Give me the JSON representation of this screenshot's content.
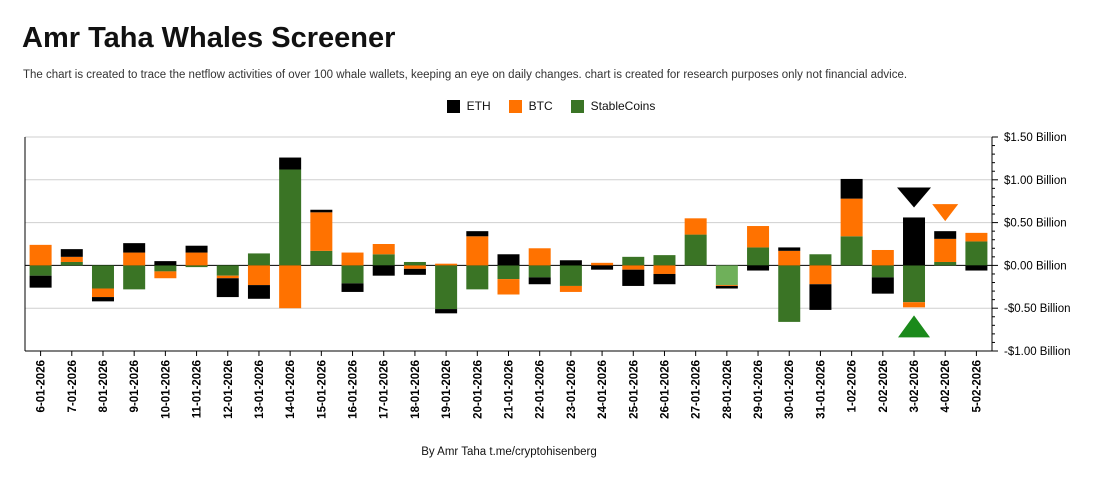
{
  "title": "Amr Taha Whales Screener",
  "subtitle": "The chart is created to trace the netflow activities of over 100 whale wallets, keeping an eye on daily changes.  chart is created for research purposes only not financial advice.",
  "credit": "By Amr Taha  t.me/cryptohisenberg",
  "legend": [
    {
      "name": "ETH",
      "color": "#000000"
    },
    {
      "name": "BTC",
      "color": "#ff7200"
    },
    {
      "name": "StableCoins",
      "color": "#3a7425"
    }
  ],
  "chart_data": {
    "type": "bar",
    "stacked": true,
    "title": "Amr Taha Whales Screener",
    "ylim": [
      -1.0,
      1.5
    ],
    "y_ticks": [
      -1.0,
      -0.5,
      0.0,
      0.5,
      1.0,
      1.5
    ],
    "y_tick_labels": [
      "-$1.00 Billion",
      "-$0.50 Billion",
      "$0.00 Billion",
      "$0.50 Billion",
      "$1.00 Billion",
      "$1.50 Billion"
    ],
    "y_axis_side": "right",
    "grid": true,
    "categories": [
      "6-01-2026",
      "7-01-2026",
      "8-01-2026",
      "9-01-2026",
      "10-01-2026",
      "11-01-2026",
      "12-01-2026",
      "13-01-2026",
      "14-01-2026",
      "15-01-2026",
      "16-01-2026",
      "17-01-2026",
      "18-01-2026",
      "19-01-2026",
      "20-01-2026",
      "21-01-2026",
      "22-01-2026",
      "23-01-2026",
      "24-01-2026",
      "25-01-2026",
      "26-01-2026",
      "27-01-2026",
      "28-01-2026",
      "29-01-2026",
      "30-01-2026",
      "31-01-2026",
      "1-02-2026",
      "2-02-2026",
      "3-02-2026",
      "4-02-2026",
      "5-02-2026"
    ],
    "series": [
      {
        "name": "ETH",
        "color": "#000000",
        "values": [
          -0.14,
          0.09,
          -0.05,
          0.11,
          0.05,
          0.08,
          -0.22,
          -0.16,
          0.14,
          0.03,
          -0.1,
          -0.12,
          -0.07,
          -0.05,
          0.06,
          0.13,
          -0.08,
          0.06,
          -0.05,
          -0.19,
          -0.12,
          0.0,
          -0.03,
          -0.06,
          0.04,
          -0.3,
          0.23,
          -0.19,
          0.56,
          0.09,
          -0.06
        ]
      },
      {
        "name": "BTC",
        "color": "#ff7200",
        "values": [
          0.24,
          0.06,
          -0.1,
          0.15,
          -0.08,
          0.15,
          -0.03,
          -0.23,
          -0.5,
          0.45,
          0.15,
          0.12,
          -0.04,
          0.02,
          0.34,
          -0.18,
          0.2,
          -0.07,
          0.03,
          -0.05,
          -0.1,
          0.19,
          -0.01,
          0.25,
          0.17,
          -0.22,
          0.44,
          0.18,
          -0.06,
          0.27,
          0.1
        ]
      },
      {
        "name": "StableCoins",
        "color": "#3a7425",
        "values": [
          -0.12,
          0.04,
          -0.27,
          -0.28,
          -0.07,
          -0.02,
          -0.12,
          0.14,
          1.12,
          0.17,
          -0.21,
          0.13,
          0.04,
          -0.51,
          -0.28,
          -0.16,
          -0.14,
          -0.24,
          0.0,
          0.1,
          0.12,
          0.36,
          -0.23,
          0.21,
          -0.66,
          0.13,
          0.34,
          -0.14,
          -0.43,
          0.04,
          0.28
        ]
      }
    ],
    "series_shades": {
      "StableCoins": {
        "28-01-2026": "#6fb05a"
      }
    },
    "annotations": [
      {
        "category": "3-02-2026",
        "shape": "down-triangle",
        "position": "above",
        "color": "#000000"
      },
      {
        "category": "3-02-2026",
        "shape": "up-triangle",
        "position": "below",
        "color": "#1b8a1b"
      },
      {
        "category": "4-02-2026",
        "shape": "down-triangle",
        "position": "above",
        "color": "#ff7200"
      }
    ]
  }
}
